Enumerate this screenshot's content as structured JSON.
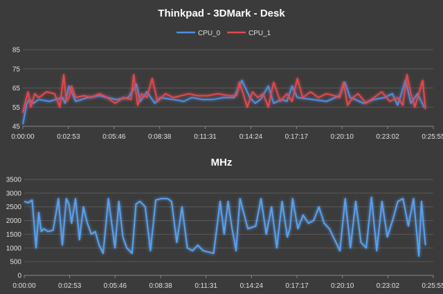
{
  "colors": {
    "background": "#3b3b3b",
    "cpu0": "#4f8fe0",
    "cpu1": "#e04a50",
    "mhz": "#5aa0ee",
    "grid": "#5a5a5a"
  },
  "chart_data": [
    {
      "type": "line",
      "title": "Thinkpad - 3DMark - Desk",
      "ylim": [
        45,
        85
      ],
      "yticks": [
        "45",
        "55",
        "65",
        "75",
        "85"
      ],
      "grid": "horizontal",
      "legend": "top",
      "xticks": [
        "0:00:00",
        "0:02:53",
        "0:05:46",
        "0:08:38",
        "0:11:31",
        "0:14:24",
        "0:17:17",
        "0:20:10",
        "0:23:02",
        "0:25:55"
      ],
      "xlim_seconds": [
        0,
        1555
      ],
      "series": [
        {
          "name": "CPU_0",
          "color": "#4f8fe0",
          "x": [
            0,
            15,
            25,
            40,
            60,
            100,
            150,
            160,
            175,
            200,
            245,
            290,
            320,
            355,
            400,
            430,
            445,
            470,
            500,
            520,
            570,
            610,
            640,
            680,
            720,
            760,
            800,
            830,
            860,
            880,
            900,
            930,
            950,
            980,
            1000,
            1020,
            1040,
            1100,
            1150,
            1200,
            1220,
            1240,
            1260,
            1290,
            1330,
            1370,
            1400,
            1420,
            1450,
            1470,
            1495,
            1520
          ],
          "values": [
            46,
            57,
            59,
            57,
            59,
            58,
            60,
            57,
            66,
            58,
            60,
            61,
            60,
            59,
            60,
            67,
            58,
            63,
            57,
            60,
            59,
            58,
            60,
            59,
            59,
            60,
            60,
            69,
            60,
            57,
            59,
            66,
            57,
            59,
            58,
            66,
            60,
            59,
            58,
            61,
            68,
            60,
            59,
            57,
            59,
            60,
            62,
            56,
            69,
            57,
            62,
            55
          ]
        },
        {
          "name": "CPU_1",
          "color": "#e04a50",
          "x": [
            0,
            10,
            20,
            30,
            45,
            60,
            90,
            120,
            140,
            155,
            165,
            175,
            185,
            200,
            230,
            260,
            290,
            320,
            350,
            380,
            410,
            420,
            435,
            450,
            470,
            490,
            510,
            540,
            570,
            600,
            630,
            660,
            700,
            740,
            780,
            810,
            820,
            835,
            850,
            870,
            890,
            910,
            930,
            950,
            975,
            1000,
            1020,
            1040,
            1060,
            1090,
            1120,
            1150,
            1180,
            1200,
            1215,
            1230,
            1250,
            1270,
            1300,
            1330,
            1360,
            1390,
            1420,
            1440,
            1455,
            1470,
            1485,
            1500,
            1515,
            1525
          ],
          "values": [
            52,
            58,
            63,
            55,
            62,
            60,
            63,
            62,
            55,
            72,
            58,
            60,
            66,
            60,
            61,
            60,
            62,
            60,
            57,
            60,
            59,
            72,
            56,
            62,
            60,
            70,
            58,
            62,
            60,
            61,
            62,
            61,
            61,
            62,
            61,
            61,
            68,
            62,
            55,
            63,
            60,
            62,
            55,
            68,
            58,
            62,
            58,
            70,
            60,
            63,
            60,
            62,
            61,
            60,
            68,
            56,
            60,
            62,
            57,
            60,
            63,
            58,
            60,
            56,
            72,
            62,
            55,
            62,
            69,
            54
          ]
        }
      ]
    },
    {
      "type": "line",
      "title": "MHz",
      "ylim": [
        0,
        3500
      ],
      "yticks": [
        "0",
        "500",
        "1000",
        "1500",
        "2000",
        "2500",
        "3000",
        "3500"
      ],
      "grid": "horizontal",
      "xticks": [
        "0:00:00",
        "0:02:53",
        "0:05:46",
        "0:08:38",
        "0:11:31",
        "0:14:24",
        "0:17:17",
        "0:20:10",
        "0:23:02",
        "0:25:55"
      ],
      "xlim_seconds": [
        0,
        1555
      ],
      "series": [
        {
          "name": "",
          "color": "#5aa0ee",
          "x": [
            0,
            15,
            30,
            45,
            55,
            65,
            75,
            90,
            110,
            130,
            145,
            160,
            170,
            180,
            195,
            210,
            225,
            240,
            255,
            270,
            285,
            300,
            320,
            345,
            360,
            375,
            390,
            410,
            425,
            440,
            460,
            480,
            500,
            520,
            545,
            560,
            580,
            600,
            620,
            640,
            660,
            680,
            700,
            720,
            745,
            760,
            775,
            790,
            805,
            820,
            850,
            880,
            900,
            920,
            940,
            960,
            980,
            1000,
            1010,
            1020,
            1040,
            1060,
            1080,
            1100,
            1120,
            1140,
            1160,
            1180,
            1200,
            1220,
            1240,
            1260,
            1280,
            1300,
            1320,
            1340,
            1360,
            1380,
            1400,
            1420,
            1440,
            1460,
            1480,
            1500,
            1510,
            1525
          ],
          "values": [
            2700,
            2650,
            2750,
            1000,
            2300,
            1600,
            1700,
            1600,
            1650,
            2800,
            1100,
            2800,
            2600,
            1900,
            2800,
            1300,
            2500,
            1900,
            1500,
            1600,
            1100,
            800,
            2800,
            1000,
            2700,
            1400,
            1000,
            800,
            2600,
            2700,
            2500,
            900,
            2750,
            2800,
            2800,
            2700,
            1200,
            2500,
            1000,
            900,
            1100,
            900,
            850,
            800,
            2700,
            1500,
            2700,
            1700,
            900,
            2800,
            1700,
            1800,
            2800,
            1500,
            2500,
            1000,
            2700,
            1400,
            1700,
            2800,
            1700,
            2200,
            1900,
            2000,
            2500,
            1900,
            1700,
            1300,
            900,
            2800,
            1000,
            2700,
            1200,
            1000,
            2850,
            900,
            2700,
            1400,
            2000,
            2700,
            2800,
            1800,
            2800,
            700,
            2700,
            1100
          ]
        }
      ]
    }
  ]
}
